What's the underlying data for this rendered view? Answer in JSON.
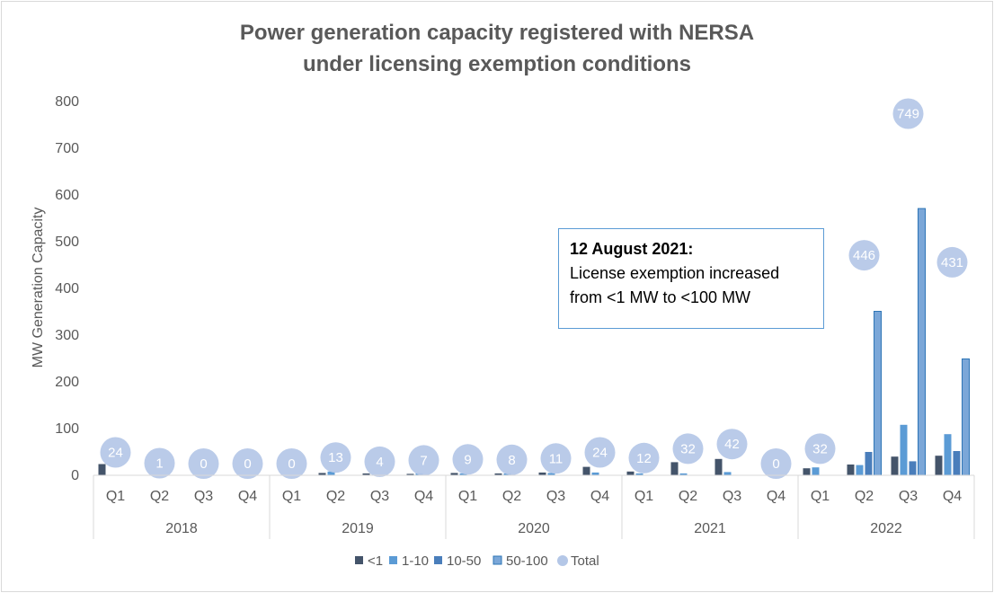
{
  "chart_data": {
    "type": "bar",
    "title": [
      "Power generation capacity registered with NERSA",
      "under licensing exemption conditions"
    ],
    "ylabel": "MW Generation Capacity",
    "ylim": [
      0,
      800
    ],
    "yticks": [
      0,
      100,
      200,
      300,
      400,
      500,
      600,
      700,
      800
    ],
    "grid": false,
    "years": [
      "2018",
      "2019",
      "2020",
      "2021",
      "2022"
    ],
    "quarters": [
      "Q1",
      "Q2",
      "Q3",
      "Q4"
    ],
    "categories": [
      "2018 Q1",
      "2018 Q2",
      "2018 Q3",
      "2018 Q4",
      "2019 Q1",
      "2019 Q2",
      "2019 Q3",
      "2019 Q4",
      "2020 Q1",
      "2020 Q2",
      "2020 Q3",
      "2020 Q4",
      "2021 Q1",
      "2021 Q2",
      "2021 Q3",
      "2021 Q4",
      "2022 Q1",
      "2022 Q2",
      "2022 Q3",
      "2022 Q4"
    ],
    "series": [
      {
        "name": "<1",
        "color": "#44546a",
        "values": [
          24,
          1,
          0,
          0,
          0,
          5,
          4,
          3,
          5,
          4,
          6,
          18,
          8,
          28,
          35,
          0,
          15,
          23,
          40,
          42
        ]
      },
      {
        "name": "1-10",
        "color": "#5b9bd5",
        "values": [
          0,
          0,
          0,
          0,
          0,
          8,
          0,
          4,
          4,
          4,
          5,
          6,
          4,
          4,
          7,
          0,
          17,
          22,
          108,
          88
        ]
      },
      {
        "name": "10-50",
        "color": "#4a7ebb",
        "values": [
          0,
          0,
          0,
          0,
          0,
          0,
          0,
          0,
          0,
          0,
          0,
          0,
          0,
          0,
          0,
          0,
          0,
          50,
          30,
          52
        ]
      },
      {
        "name": "50-100",
        "color": "#7ba7d8",
        "values": [
          0,
          0,
          0,
          0,
          0,
          0,
          0,
          0,
          0,
          0,
          0,
          0,
          0,
          0,
          0,
          0,
          0,
          351,
          571,
          249
        ]
      }
    ],
    "totals": {
      "name": "Total",
      "color": "#b4c7e7",
      "values": [
        24,
        1,
        0,
        0,
        0,
        13,
        4,
        7,
        9,
        8,
        11,
        24,
        12,
        32,
        42,
        0,
        32,
        446,
        749,
        431
      ]
    },
    "legend": {
      "position": "bottom",
      "entries": [
        "<1",
        "1-10",
        "10-50",
        "50-100",
        "Total"
      ]
    },
    "annotation": {
      "title": "12 August 2021:",
      "lines": [
        "License exemption increased",
        "from <1 MW to <100 MW"
      ]
    }
  }
}
